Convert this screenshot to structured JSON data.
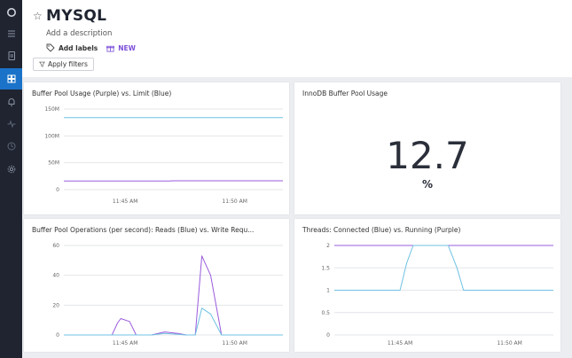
{
  "sidebar": {
    "items": [
      {
        "icon": "logo-icon"
      },
      {
        "icon": "list-icon"
      },
      {
        "icon": "document-icon"
      },
      {
        "icon": "dashboard-icon",
        "active": true
      },
      {
        "icon": "bell-icon"
      },
      {
        "icon": "activity-icon"
      },
      {
        "icon": "clock-icon"
      },
      {
        "icon": "gear-icon"
      }
    ]
  },
  "header": {
    "title": "MYSQL",
    "description": "Add a description",
    "add_labels": "Add labels",
    "new_badge": "NEW",
    "apply_filters": "Apply filters"
  },
  "panels": {
    "p1": {
      "title": "Buffer Pool Usage (Purple) vs. Limit (Blue)"
    },
    "p2": {
      "title": "InnoDB Buffer Pool Usage",
      "value": "12.7",
      "unit": "%"
    },
    "p3": {
      "title": "Buffer Pool Operations (per second): Reads (Blue) vs. Write Requ..."
    },
    "p4": {
      "title": "Threads: Connected (Blue) vs. Running (Purple)"
    }
  },
  "colors": {
    "blue": "#6fc2e3",
    "purple": "#9a5bdc",
    "grid": "#e3e6ea",
    "active": "#1a73c9"
  },
  "chart_data": [
    {
      "type": "line",
      "title": "Buffer Pool Usage (Purple) vs. Limit (Blue)",
      "ylim": [
        0,
        150000000
      ],
      "yticks": [
        0,
        50000000,
        100000000,
        150000000
      ],
      "ytick_labels": [
        "0",
        "50M",
        "100M",
        "150M"
      ],
      "xticks": [
        {
          "t": 0.28,
          "label": "11:45 AM"
        },
        {
          "t": 0.78,
          "label": "11:50 AM"
        }
      ],
      "series": [
        {
          "color": "blue",
          "t": [
            0,
            1
          ],
          "values": [
            134000000,
            134000000
          ]
        },
        {
          "color": "purple",
          "t": [
            0,
            0.48,
            0.5,
            1
          ],
          "values": [
            16000000,
            16000000,
            16500000,
            16500000
          ]
        }
      ]
    },
    {
      "type": "line",
      "title": "Buffer Pool Operations (per second): Reads (Blue) vs. Write Requ...",
      "ylim": [
        0,
        60
      ],
      "yticks": [
        0,
        20,
        40,
        60
      ],
      "ytick_labels": [
        "0",
        "20",
        "40",
        "60"
      ],
      "xticks": [
        {
          "t": 0.28,
          "label": "11:45 AM"
        },
        {
          "t": 0.78,
          "label": "11:50 AM"
        }
      ],
      "series": [
        {
          "color": "purple",
          "t": [
            0,
            0.22,
            0.245,
            0.26,
            0.3,
            0.33,
            0.4,
            0.46,
            0.52,
            0.56,
            0.6,
            0.63,
            0.67,
            0.72,
            1
          ],
          "values": [
            0,
            0,
            8,
            11,
            9,
            0,
            0,
            2,
            1,
            0,
            0,
            53,
            40,
            0,
            0
          ]
        },
        {
          "color": "blue",
          "t": [
            0,
            0.4,
            0.46,
            0.52,
            0.56,
            0.6,
            0.63,
            0.67,
            0.72,
            1
          ],
          "values": [
            0,
            0,
            1,
            0.5,
            0,
            0,
            18,
            14,
            0,
            0
          ]
        }
      ]
    },
    {
      "type": "line",
      "title": "Threads: Connected (Blue) vs. Running (Purple)",
      "ylim": [
        0,
        2
      ],
      "yticks": [
        0,
        0.5,
        1,
        1.5,
        2
      ],
      "ytick_labels": [
        "0",
        "0.5",
        "1",
        "1.5",
        "2"
      ],
      "xticks": [
        {
          "t": 0.3,
          "label": "11:45 AM"
        },
        {
          "t": 0.8,
          "label": "11:50 AM"
        }
      ],
      "series": [
        {
          "color": "purple",
          "t": [
            0,
            1
          ],
          "values": [
            2,
            2
          ]
        },
        {
          "color": "blue",
          "t": [
            0,
            0.3,
            0.33,
            0.36,
            0.52,
            0.56,
            0.59,
            1
          ],
          "values": [
            1,
            1,
            1.6,
            2,
            2,
            1.5,
            1,
            1
          ]
        }
      ]
    }
  ]
}
